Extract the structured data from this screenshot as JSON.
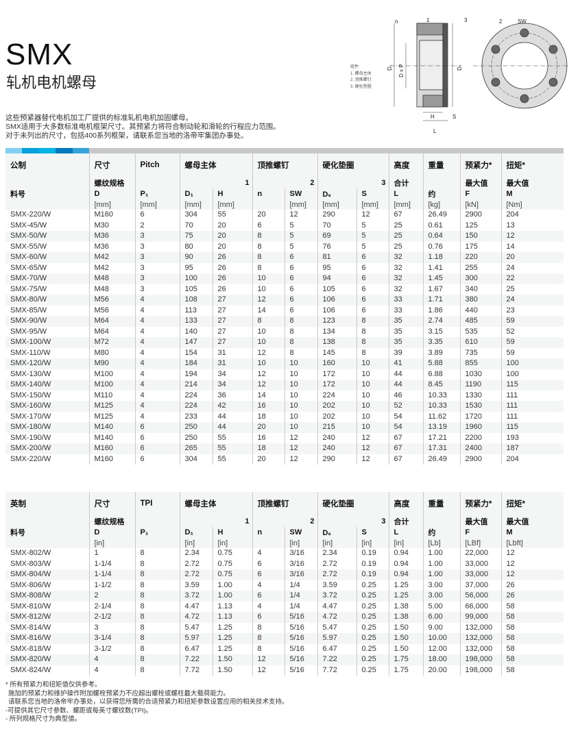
{
  "header": {
    "title": "SMX",
    "subtitle": "轧机电机螺母",
    "intro": [
      "这些预紧器替代电机加工厂提供的标准轧机电机加固螺母。",
      "SMX适用于大多数标准电机框架尺寸。其预紧力将符合制动轮和滑轮的行程应力范围。",
      "对于未列出的尺寸，包括400系列框架，请联系您当地的洛帝牢集团办事处。"
    ]
  },
  "diagram": {
    "legend": [
      "组件:",
      "1. 螺母主体",
      "2. 顶推螺钉",
      "3. 硬化垫圈"
    ],
    "labels": {
      "n": "n",
      "one": "1",
      "two": "2",
      "three": "3",
      "sw": "SW",
      "d1": "D₁",
      "dxp": "D x P",
      "ds": "Dₛ",
      "h": "H",
      "s": "S",
      "l": "L"
    }
  },
  "colors": {
    "bar": [
      "#7fd0f2",
      "#00a3e0",
      "#00b6e8",
      "#0079c1",
      "#35a3dc"
    ],
    "bar_gray": "#c8c8c8",
    "header_bg": "#f4f5f5"
  },
  "metric": {
    "header": {
      "row1": [
        "公制",
        "尺寸",
        "Pitch",
        "螺母主体",
        "顶推螺钉",
        "硬化垫圈",
        "高度",
        "重量",
        "预紧力*",
        "扭矩*"
      ],
      "row2": [
        "",
        "螺纹规格",
        "",
        "1",
        "2",
        "3",
        "合计",
        "",
        "最大值",
        "最大值"
      ],
      "row3": [
        "料号",
        "D",
        "P₁",
        "D₁",
        "H",
        "n",
        "SW",
        "Dₛ",
        "S",
        "L",
        "约",
        "F",
        "M"
      ],
      "row4": [
        "",
        "[mm]",
        "[mm]",
        "[mm]",
        "[mm]",
        "",
        "[mm]",
        "[mm]",
        "[mm]",
        "[mm]",
        "[kg]",
        "[kN]",
        "[Nm]"
      ]
    },
    "rows": [
      [
        "SMX-220/W",
        "M160",
        "6",
        "304",
        "55",
        "20",
        "12",
        "290",
        "12",
        "67",
        "26.49",
        "2900",
        "204"
      ],
      [
        "SMX-45/W",
        "M30",
        "2",
        "70",
        "20",
        "6",
        "5",
        "70",
        "5",
        "25",
        "0.61",
        "125",
        "13"
      ],
      [
        "SMX-50/W",
        "M36",
        "3",
        "75",
        "20",
        "8",
        "5",
        "69",
        "5",
        "25",
        "0.64",
        "150",
        "12"
      ],
      [
        "SMX-55/W",
        "M36",
        "3",
        "80",
        "20",
        "8",
        "5",
        "76",
        "5",
        "25",
        "0.76",
        "175",
        "14"
      ],
      [
        "SMX-60/W",
        "M42",
        "3",
        "90",
        "26",
        "8",
        "6",
        "81",
        "6",
        "32",
        "1.18",
        "220",
        "20"
      ],
      [
        "SMX-65/W",
        "M42",
        "3",
        "95",
        "26",
        "8",
        "6",
        "95",
        "6",
        "32",
        "1.41",
        "255",
        "24"
      ],
      [
        "SMX-70/W",
        "M48",
        "3",
        "100",
        "26",
        "10",
        "6",
        "94",
        "6",
        "32",
        "1.45",
        "300",
        "22"
      ],
      [
        "SMX-75/W",
        "M48",
        "3",
        "105",
        "26",
        "10",
        "6",
        "105",
        "6",
        "32",
        "1.67",
        "340",
        "25"
      ],
      [
        "SMX-80/W",
        "M56",
        "4",
        "108",
        "27",
        "12",
        "6",
        "106",
        "6",
        "33",
        "1.71",
        "380",
        "24"
      ],
      [
        "SMX-85/W",
        "M56",
        "4",
        "113",
        "27",
        "14",
        "6",
        "106",
        "6",
        "33",
        "1.86",
        "440",
        "23"
      ],
      [
        "SMX-90/W",
        "M64",
        "4",
        "133",
        "27",
        "8",
        "8",
        "123",
        "8",
        "35",
        "2.74",
        "485",
        "59"
      ],
      [
        "SMX-95/W",
        "M64",
        "4",
        "140",
        "27",
        "10",
        "8",
        "134",
        "8",
        "35",
        "3.15",
        "535",
        "52"
      ],
      [
        "SMX-100/W",
        "M72",
        "4",
        "147",
        "27",
        "10",
        "8",
        "138",
        "8",
        "35",
        "3.35",
        "610",
        "59"
      ],
      [
        "SMX-110/W",
        "M80",
        "4",
        "154",
        "31",
        "12",
        "8",
        "145",
        "8",
        "39",
        "3.89",
        "735",
        "59"
      ],
      [
        "SMX-120/W",
        "M90",
        "4",
        "184",
        "31",
        "10",
        "10",
        "160",
        "10",
        "41",
        "5.88",
        "855",
        "100"
      ],
      [
        "SMX-130/W",
        "M100",
        "4",
        "194",
        "34",
        "12",
        "10",
        "172",
        "10",
        "44",
        "6.88",
        "1030",
        "100"
      ],
      [
        "SMX-140/W",
        "M100",
        "4",
        "214",
        "34",
        "12",
        "10",
        "172",
        "10",
        "44",
        "8.45",
        "1190",
        "115"
      ],
      [
        "SMX-150/W",
        "M110",
        "4",
        "224",
        "36",
        "14",
        "10",
        "224",
        "10",
        "46",
        "10.33",
        "1330",
        "111"
      ],
      [
        "SMX-160/W",
        "M125",
        "4",
        "224",
        "42",
        "16",
        "10",
        "202",
        "10",
        "52",
        "10.33",
        "1530",
        "111"
      ],
      [
        "SMX-170/W",
        "M125",
        "4",
        "233",
        "44",
        "18",
        "10",
        "202",
        "10",
        "54",
        "11.62",
        "1720",
        "111"
      ],
      [
        "SMX-180/W",
        "M140",
        "6",
        "250",
        "44",
        "20",
        "10",
        "215",
        "10",
        "54",
        "13.19",
        "1960",
        "115"
      ],
      [
        "SMX-190/W",
        "M140",
        "6",
        "250",
        "55",
        "16",
        "12",
        "240",
        "12",
        "67",
        "17.21",
        "2200",
        "193"
      ],
      [
        "SMX-200/W",
        "M160",
        "6",
        "265",
        "55",
        "18",
        "12",
        "240",
        "12",
        "67",
        "17.31",
        "2400",
        "187"
      ],
      [
        "SMX-220/W",
        "M160",
        "6",
        "304",
        "55",
        "20",
        "12",
        "290",
        "12",
        "67",
        "26.49",
        "2900",
        "204"
      ]
    ]
  },
  "imperial": {
    "header": {
      "row1": [
        "英制",
        "尺寸",
        "TPI",
        "螺母主体",
        "顶推螺钉",
        "硬化垫圈",
        "高度",
        "重量",
        "预紧力*",
        "扭矩*"
      ],
      "row2": [
        "",
        "螺纹规格",
        "",
        "1",
        "2",
        "3",
        "合计",
        "",
        "最大值",
        "最大值"
      ],
      "row3": [
        "料号",
        "D",
        "P₁",
        "D₁",
        "H",
        "n",
        "SW",
        "Dₛ",
        "S",
        "L",
        "约",
        "F",
        "M"
      ],
      "row4": [
        "",
        "[in]",
        "",
        "[in]",
        "[in]",
        "",
        "[in]",
        "[in]",
        "[in]",
        "[in]",
        "[Lb]",
        "[LBf]",
        "[Lbft]"
      ]
    },
    "rows": [
      [
        "SMX-802/W",
        "1",
        "8",
        "2.34",
        "0.75",
        "4",
        "3/16",
        "2.34",
        "0.19",
        "0.94",
        "1.00",
        "22,000",
        "12"
      ],
      [
        "SMX-803/W",
        "1-1/4",
        "8",
        "2.72",
        "0.75",
        "6",
        "3/16",
        "2.72",
        "0.19",
        "0.94",
        "1.00",
        "33,000",
        "12"
      ],
      [
        "SMX-804/W",
        "1-1/4",
        "8",
        "2.72",
        "0.75",
        "6",
        "3/16",
        "2.72",
        "0.19",
        "0.94",
        "1.00",
        "33,000",
        "12"
      ],
      [
        "SMX-806/W",
        "1-1/2",
        "8",
        "3.59",
        "1.00",
        "4",
        "1/4",
        "3.59",
        "0.25",
        "1.25",
        "3.00",
        "37,000",
        "26"
      ],
      [
        "SMX-808/W",
        "2",
        "8",
        "3.72",
        "1.00",
        "6",
        "1/4",
        "3.72",
        "0.25",
        "1.25",
        "3.00",
        "56,000",
        "26"
      ],
      [
        "SMX-810/W",
        "2-1/4",
        "8",
        "4.47",
        "1.13",
        "4",
        "1/4",
        "4.47",
        "0.25",
        "1.38",
        "5.00",
        "66,000",
        "58"
      ],
      [
        "SMX-812/W",
        "2-1/2",
        "8",
        "4.72",
        "1.13",
        "6",
        "5/16",
        "4.72",
        "0.25",
        "1.38",
        "6.00",
        "99,000",
        "58"
      ],
      [
        "SMX-814/W",
        "3",
        "8",
        "5.47",
        "1.25",
        "8",
        "5/16",
        "5.47",
        "0.25",
        "1.50",
        "9.00",
        "132,000",
        "58"
      ],
      [
        "SMX-816/W",
        "3-1/4",
        "8",
        "5.97",
        "1.25",
        "8",
        "5/16",
        "5.97",
        "0.25",
        "1.50",
        "10.00",
        "132,000",
        "58"
      ],
      [
        "SMX-818/W",
        "3-1/2",
        "8",
        "6.47",
        "1.25",
        "8",
        "5/16",
        "6.47",
        "0.25",
        "1.50",
        "12.00",
        "132,000",
        "58"
      ],
      [
        "SMX-820/W",
        "4",
        "8",
        "7.22",
        "1.50",
        "12",
        "5/16",
        "7.22",
        "0.25",
        "1.75",
        "18.00",
        "198,000",
        "58"
      ],
      [
        "SMX-824/W",
        "4",
        "8",
        "7.72",
        "1.50",
        "12",
        "5/16",
        "7.72",
        "0.25",
        "1.75",
        "20.00",
        "198,000",
        "58"
      ]
    ]
  },
  "notes": [
    "* 所有预紧力和扭矩值仅供参考。",
    "  施加的预紧力和维护操作附加螺栓预紧力不应超出螺栓或螺柱最大载荷能力。",
    "  请联系您当地的洛帝牢办事处，以获得您所需的合适预紧力和扭矩参数设置应用的相关技术支持。",
    "-可提供其它尺寸参数、螺距或每英寸螺纹数(TPI)。",
    "- 所列规格尺寸为典型值。"
  ]
}
